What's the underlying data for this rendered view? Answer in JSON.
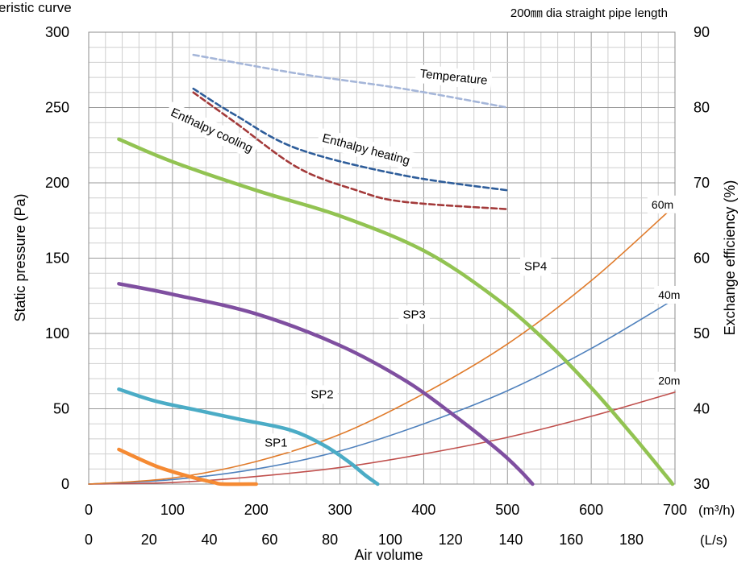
{
  "chart_data": {
    "type": "line",
    "title": "eristic curve",
    "subtitle": "200㎜ dia straight pipe length",
    "ylabel": "Static pressure (Pa)",
    "y2label": "Exchange efficiency (%)",
    "xlabel": "Air volume",
    "x_unit_m3h": "(m³/h)",
    "x_unit_ls": "(L/s)",
    "xlim_m3h": [
      0,
      700
    ],
    "ylim": [
      0,
      300
    ],
    "y2lim": [
      30,
      90
    ],
    "grid": true,
    "xticks_m3h": [
      "0",
      "100",
      "200",
      "300",
      "400",
      "500",
      "600",
      "700"
    ],
    "xticks_ls": [
      "0",
      "20",
      "40",
      "60",
      "80",
      "100",
      "120",
      "140",
      "160",
      "180"
    ],
    "yticks": [
      "0",
      "50",
      "100",
      "150",
      "200",
      "250",
      "300"
    ],
    "y2ticks": [
      "30",
      "40",
      "50",
      "60",
      "70",
      "80",
      "90"
    ],
    "fan_curves": [
      {
        "name": "SP1",
        "label": "SP1",
        "label_at": [
          210,
          25
        ],
        "color": "#F58A33",
        "points": [
          [
            36,
            23
          ],
          [
            80,
            12
          ],
          [
            120,
            5
          ],
          [
            150,
            1
          ],
          [
            160,
            0
          ],
          [
            200,
            0
          ]
        ]
      },
      {
        "name": "SP2",
        "label": "SP2",
        "label_at": [
          265,
          57
        ],
        "color": "#4BACC6",
        "points": [
          [
            36,
            63
          ],
          [
            80,
            55
          ],
          [
            130,
            49
          ],
          [
            180,
            43
          ],
          [
            240,
            36
          ],
          [
            280,
            26
          ],
          [
            310,
            15
          ],
          [
            330,
            6
          ],
          [
            345,
            0
          ]
        ]
      },
      {
        "name": "SP3",
        "label": "SP3",
        "label_at": [
          375,
          110
        ],
        "color": "#7F4FA0",
        "points": [
          [
            36,
            133
          ],
          [
            100,
            126
          ],
          [
            200,
            113
          ],
          [
            300,
            92
          ],
          [
            380,
            68
          ],
          [
            440,
            44
          ],
          [
            490,
            22
          ],
          [
            515,
            9
          ],
          [
            530,
            0
          ]
        ]
      },
      {
        "name": "SP4",
        "label": "SP4",
        "label_at": [
          520,
          142
        ],
        "color": "#92C352",
        "points": [
          [
            36,
            229
          ],
          [
            100,
            214
          ],
          [
            200,
            195
          ],
          [
            300,
            178
          ],
          [
            400,
            155
          ],
          [
            480,
            126
          ],
          [
            540,
            98
          ],
          [
            600,
            64
          ],
          [
            650,
            32
          ],
          [
            690,
            5
          ],
          [
            697,
            0
          ]
        ]
      }
    ],
    "pipe_curves": [
      {
        "name": "20m",
        "label": "20m",
        "label_at": [
          680,
          66
        ],
        "color": "#C0504D",
        "points": [
          [
            0,
            0
          ],
          [
            100,
            1
          ],
          [
            200,
            5
          ],
          [
            300,
            11
          ],
          [
            400,
            20
          ],
          [
            500,
            31
          ],
          [
            600,
            45
          ],
          [
            700,
            61
          ]
        ]
      },
      {
        "name": "40m",
        "label": "40m",
        "label_at": [
          680,
          123
        ],
        "color": "#4F81BD",
        "points": [
          [
            0,
            0
          ],
          [
            100,
            3
          ],
          [
            200,
            10
          ],
          [
            300,
            22
          ],
          [
            400,
            40
          ],
          [
            500,
            62
          ],
          [
            600,
            90
          ],
          [
            700,
            123
          ]
        ]
      },
      {
        "name": "60m",
        "label": "60m",
        "label_at": [
          672,
          183
        ],
        "color": "#E07B2B",
        "points": [
          [
            0,
            0
          ],
          [
            100,
            4
          ],
          [
            200,
            15
          ],
          [
            300,
            33
          ],
          [
            400,
            60
          ],
          [
            500,
            93
          ],
          [
            600,
            135
          ],
          [
            700,
            185
          ]
        ]
      }
    ],
    "efficiency_curves": [
      {
        "name": "Temperature",
        "label": "Temperature",
        "label_at": [
          395,
          84
        ],
        "label_rotate": 6,
        "color": "#A5B6D9",
        "points": [
          [
            125,
            87
          ],
          [
            250,
            84.5
          ],
          [
            375,
            82.5
          ],
          [
            500,
            80
          ]
        ]
      },
      {
        "name": "Enthalpy heating",
        "label": "Enthalpy heating",
        "label_at": [
          278,
          75.5
        ],
        "label_rotate": 15,
        "color": "#2E5D9A",
        "points": [
          [
            125,
            82.5
          ],
          [
            175,
            79
          ],
          [
            250,
            74.5
          ],
          [
            375,
            71
          ],
          [
            500,
            69
          ]
        ]
      },
      {
        "name": "Enthalpy cooling",
        "label": "Enthalpy cooling",
        "label_at": [
          97,
          79
        ],
        "label_rotate": 25,
        "color": "#A33A3A",
        "points": [
          [
            125,
            82
          ],
          [
            175,
            78
          ],
          [
            250,
            72
          ],
          [
            320,
            69
          ],
          [
            375,
            67.5
          ],
          [
            500,
            66.5
          ]
        ]
      }
    ]
  }
}
